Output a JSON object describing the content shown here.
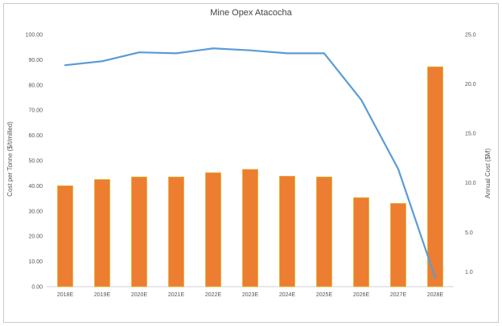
{
  "chart_data": {
    "type": "bar",
    "title": "Mine Opex  Atacocha",
    "categories": [
      "2018E",
      "2019E",
      "2020E",
      "2021E",
      "2022E",
      "2023E",
      "2024E",
      "2025E",
      "2026E",
      "2027E",
      "2028E"
    ],
    "series": [
      {
        "type": "bar",
        "axis": "left",
        "values": [
          40.0,
          42.5,
          43.5,
          43.5,
          45.2,
          46.5,
          43.8,
          43.5,
          35.3,
          33.0,
          87.2
        ]
      },
      {
        "type": "line",
        "axis": "right",
        "values": [
          21.9,
          22.3,
          23.2,
          23.1,
          23.6,
          23.4,
          23.1,
          23.1,
          18.4,
          11.4,
          0.4
        ]
      }
    ],
    "ylabel": "Cost per Tonne ($/t/milled)",
    "y2label": "Annual Cost ($M)",
    "ylim": [
      0,
      100
    ],
    "y2lim": [
      -0.5,
      25
    ],
    "yticks": [
      "0.00",
      "10.00",
      "20.00",
      "30.00",
      "40.00",
      "50.00",
      "60.00",
      "70.00",
      "80.00",
      "90.00",
      "100.00"
    ],
    "y2ticks": [
      "",
      "1.0",
      "",
      "5.0",
      "",
      "10.0",
      "",
      "15.0",
      "",
      "20.0",
      "",
      "25.0"
    ],
    "colors": {
      "bar": "#ED7D31",
      "bar_edge": "#E2B32A",
      "line": "#5B9BD5",
      "grid": "none"
    }
  }
}
